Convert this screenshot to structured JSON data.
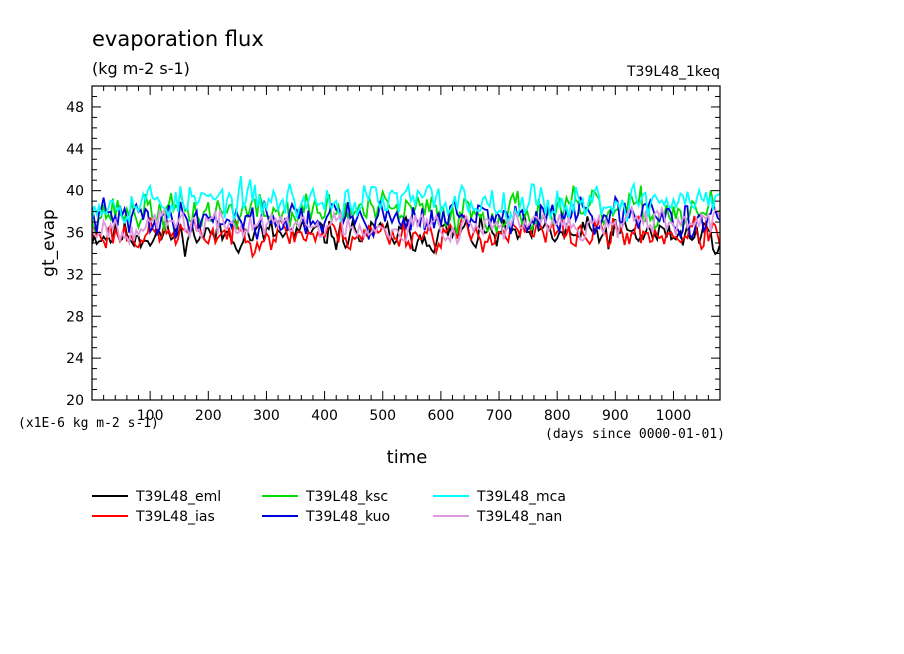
{
  "chart_data": {
    "type": "line",
    "title": "evaporation flux",
    "subtitle": "(kg m-2 s-1)",
    "run_label": "T39L48_1keq",
    "xlabel": "time",
    "x_unit_label": "(days since 0000-01-01)",
    "ylabel": "gt_evap",
    "y_unit_label": "(x1E-6 kg m-2 s-1)",
    "xlim": [
      0,
      1080
    ],
    "ylim": [
      20,
      50
    ],
    "x_ticks": [
      100,
      200,
      300,
      400,
      500,
      600,
      700,
      800,
      900,
      1000
    ],
    "y_ticks": [
      20,
      24,
      28,
      32,
      36,
      40,
      44,
      48
    ],
    "x_step_days": 4,
    "legend_placement": "bottom-left",
    "grid": false,
    "series": [
      {
        "name": "T39L48_eml",
        "color": "#000000",
        "mean": 35.8,
        "amp": 1.1,
        "seed": 11,
        "values_note": "daily-noise series ~33-38"
      },
      {
        "name": "T39L48_ias",
        "color": "#ff0000",
        "mean": 35.9,
        "amp": 1.1,
        "seed": 23
      },
      {
        "name": "T39L48_ksc",
        "color": "#00dd00",
        "mean": 38.0,
        "amp": 1.3,
        "seed": 37
      },
      {
        "name": "T39L48_kuo",
        "color": "#0000dd",
        "mean": 37.4,
        "amp": 1.2,
        "seed": 41
      },
      {
        "name": "T39L48_mca",
        "color": "#00ffff",
        "mean": 39.0,
        "amp": 1.3,
        "seed": 53
      },
      {
        "name": "T39L48_nan",
        "color": "#dd99dd",
        "mean": 36.7,
        "amp": 1.0,
        "seed": 67
      }
    ]
  }
}
